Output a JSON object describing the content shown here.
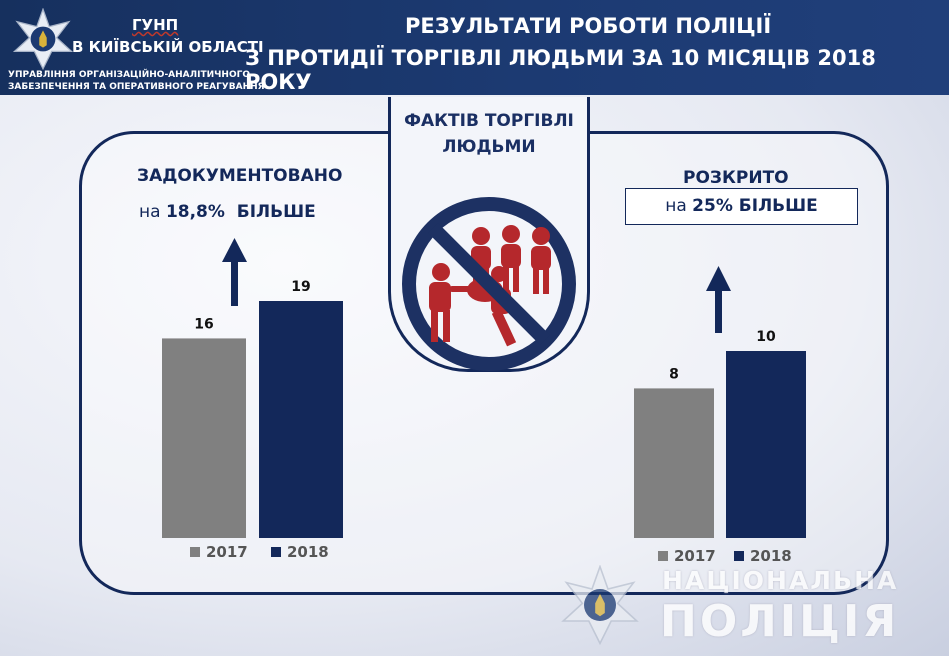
{
  "header": {
    "agency_line1": "ГУНП",
    "agency_line2": "В КИЇВСЬКІЙ ОБЛАСТІ",
    "dept_line1": "УПРАВЛІННЯ ОРГАНІЗАЦІЙНО-АНАЛІТИЧНОГО",
    "dept_line2": "ЗАБЕЗПЕЧЕННЯ ТА ОПЕРАТИВНОГО РЕАГУВАННЯ",
    "title_line1": "РЕЗУЛЬТАТИ РОБОТИ ПОЛІЦІЇ",
    "title_line2": "З ПРОТИДІЇ ТОРГІВЛІ ЛЮДЬМИ ЗА 10 МІСЯЦІВ 2018 РОКУ"
  },
  "center": {
    "title_line1": "ФАКТІВ ТОРГІВЛІ",
    "title_line2": "ЛЮДЬМИ",
    "icon": "no-human-trafficking-icon"
  },
  "left_panel": {
    "label": "ЗАДОКУМЕНТОВАНО",
    "sub_prefix": "на ",
    "sub_value": "18,8%",
    "sub_suffix": "  БІЛЬШЕ"
  },
  "right_panel": {
    "label": "РОЗКРИТО",
    "sub_prefix": "на ",
    "sub_value": "25% БІЛЬШЕ"
  },
  "colors": {
    "header_bg": "#1c3a72",
    "bar_2017": "#808080",
    "bar_2018": "#13285a",
    "no_sign": "#1d3163",
    "figures": "#b5282c",
    "text_navy": "#13285a"
  },
  "watermark": {
    "line1": "НАЦІОНАЛЬНА",
    "line2": "ПОЛІЦІЯ"
  },
  "chart_data": [
    {
      "type": "bar",
      "categories": [
        "2017",
        "2018"
      ],
      "values": [
        16,
        19
      ],
      "title": "ЗАДОКУМЕНТОВАНО",
      "ylim": [
        0,
        19
      ],
      "legend": [
        "2017",
        "2018"
      ],
      "legend_position": "bottom",
      "grid": false
    },
    {
      "type": "bar",
      "categories": [
        "2017",
        "2018"
      ],
      "values": [
        8,
        10
      ],
      "title": "РОЗКРИТО",
      "ylim": [
        0,
        10
      ],
      "legend": [
        "2017",
        "2018"
      ],
      "legend_position": "bottom",
      "grid": false
    }
  ]
}
